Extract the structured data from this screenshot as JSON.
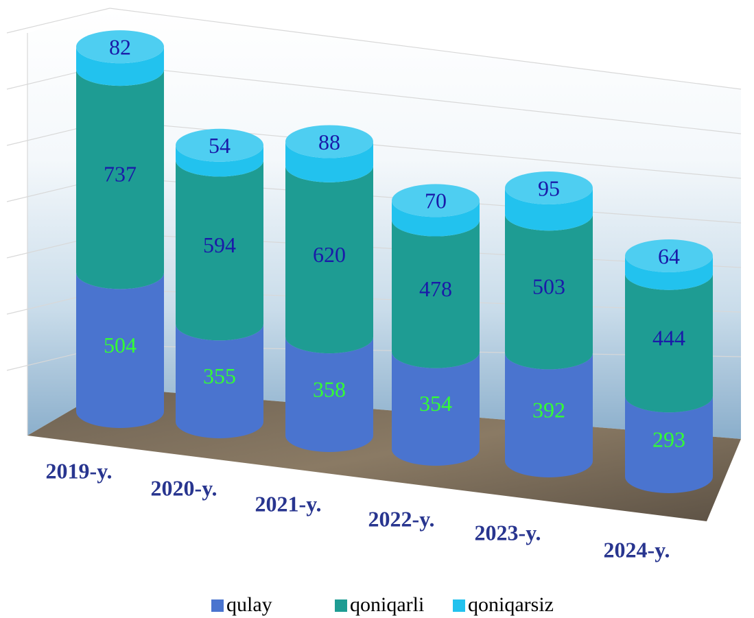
{
  "chart_data": {
    "type": "bar",
    "stacked": true,
    "categories": [
      "2019-y.",
      "2020-y.",
      "2021-y.",
      "2022-y.",
      "2023-y.",
      "2024-y."
    ],
    "series": [
      {
        "name": "qulay",
        "color": "#4a74cf",
        "label_color": "#33ff33",
        "values": [
          504,
          355,
          358,
          354,
          392,
          293
        ]
      },
      {
        "name": "qoniqarli",
        "color": "#1e9c93",
        "label_color": "#1a1aa8",
        "values": [
          737,
          594,
          620,
          478,
          503,
          444
        ]
      },
      {
        "name": "qoniqarsiz",
        "color": "#22c2ee",
        "label_color": "#1a1aa8",
        "values": [
          82,
          54,
          88,
          70,
          95,
          64
        ]
      }
    ]
  }
}
